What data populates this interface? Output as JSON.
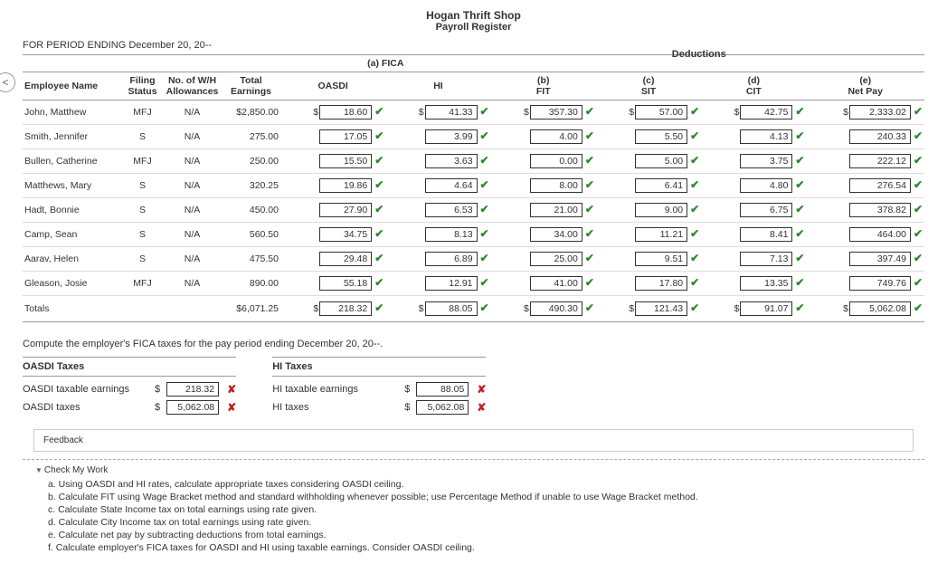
{
  "title": "Hogan Thrift Shop",
  "subtitle": "Payroll Register",
  "periodLabel": "FOR PERIOD ENDING December 20, 20--",
  "deductionsLabel": "Deductions",
  "ficaLabel": "(a) FICA",
  "headers": {
    "name": "Employee Name",
    "filing": "Filing Status",
    "wh": "No. of W/H Allowances",
    "total": "Total Earnings",
    "oasdi": "OASDI",
    "hi": "HI",
    "fit": "FIT",
    "sit": "SIT",
    "cit": "CIT",
    "net": "Net Pay",
    "b": "(b)",
    "c": "(c)",
    "d": "(d)",
    "e": "(e)"
  },
  "rows": [
    {
      "name": "John, Matthew",
      "filing": "MFJ",
      "wh": "N/A",
      "total": "$2,850.00",
      "oasdi": "18.60",
      "hi": "41.33",
      "fit": "357.30",
      "sit": "57.00",
      "cit": "42.75",
      "net": "2,333.02",
      "d": true
    },
    {
      "name": "Smith, Jennifer",
      "filing": "S",
      "wh": "N/A",
      "total": "275.00",
      "oasdi": "17.05",
      "hi": "3.99",
      "fit": "4.00",
      "sit": "5.50",
      "cit": "4.13",
      "net": "240.33",
      "d": false
    },
    {
      "name": "Bullen, Catherine",
      "filing": "MFJ",
      "wh": "N/A",
      "total": "250.00",
      "oasdi": "15.50",
      "hi": "3.63",
      "fit": "0.00",
      "sit": "5.00",
      "cit": "3.75",
      "net": "222.12",
      "d": false
    },
    {
      "name": "Matthews, Mary",
      "filing": "S",
      "wh": "N/A",
      "total": "320.25",
      "oasdi": "19.86",
      "hi": "4.64",
      "fit": "8.00",
      "sit": "6.41",
      "cit": "4.80",
      "net": "276.54",
      "d": false
    },
    {
      "name": "Hadt, Bonnie",
      "filing": "S",
      "wh": "N/A",
      "total": "450.00",
      "oasdi": "27.90",
      "hi": "6.53",
      "fit": "21.00",
      "sit": "9.00",
      "cit": "6.75",
      "net": "378.82",
      "d": false
    },
    {
      "name": "Camp, Sean",
      "filing": "S",
      "wh": "N/A",
      "total": "560.50",
      "oasdi": "34.75",
      "hi": "8.13",
      "fit": "34.00",
      "sit": "11.21",
      "cit": "8.41",
      "net": "464.00",
      "d": false
    },
    {
      "name": "Aarav, Helen",
      "filing": "S",
      "wh": "N/A",
      "total": "475.50",
      "oasdi": "29.48",
      "hi": "6.89",
      "fit": "25.00",
      "sit": "9.51",
      "cit": "7.13",
      "net": "397.49",
      "d": false
    },
    {
      "name": "Gleason, Josie",
      "filing": "MFJ",
      "wh": "N/A",
      "total": "890.00",
      "oasdi": "55.18",
      "hi": "12.91",
      "fit": "41.00",
      "sit": "17.80",
      "cit": "13.35",
      "net": "749.76",
      "d": false
    }
  ],
  "totals": {
    "label": "Totals",
    "total": "$6,071.25",
    "oasdi": "218.32",
    "hi": "88.05",
    "fit": "490.30",
    "sit": "121.43",
    "cit": "91.07",
    "net": "5,062.08"
  },
  "computeText": "Compute the employer's FICA taxes for the pay period ending December 20, 20--.",
  "fica": {
    "oasdiHead": "OASDI Taxes",
    "hiHead": "HI Taxes",
    "oasdiTaxableLbl": "OASDI taxable earnings",
    "oasdiTaxable": "218.32",
    "oasdiTaxesLbl": "OASDI taxes",
    "oasdiTaxes": "5,062.08",
    "hiTaxableLbl": "HI taxable earnings",
    "hiTaxable": "88.05",
    "hiTaxesLbl": "HI taxes",
    "hiTaxes": "5,062.08"
  },
  "feedback": "Feedback",
  "cmw": "Check My Work",
  "hints": {
    "a": "a. Using OASDI and HI rates, calculate appropriate taxes considering OASDI ceiling.",
    "b": "b. Calculate FIT using Wage Bracket method and standard withholding whenever possible; use Percentage Method if unable to use Wage Bracket method.",
    "c": "c. Calculate State Income tax on total earnings using rate given.",
    "d": "d. Calculate City Income tax on total earnings using rate given.",
    "e": "e. Calculate net pay by subtracting deductions from total earnings.",
    "f": "f. Calculate employer's FICA taxes for OASDI and HI using taxable earnings. Consider OASDI ceiling."
  }
}
